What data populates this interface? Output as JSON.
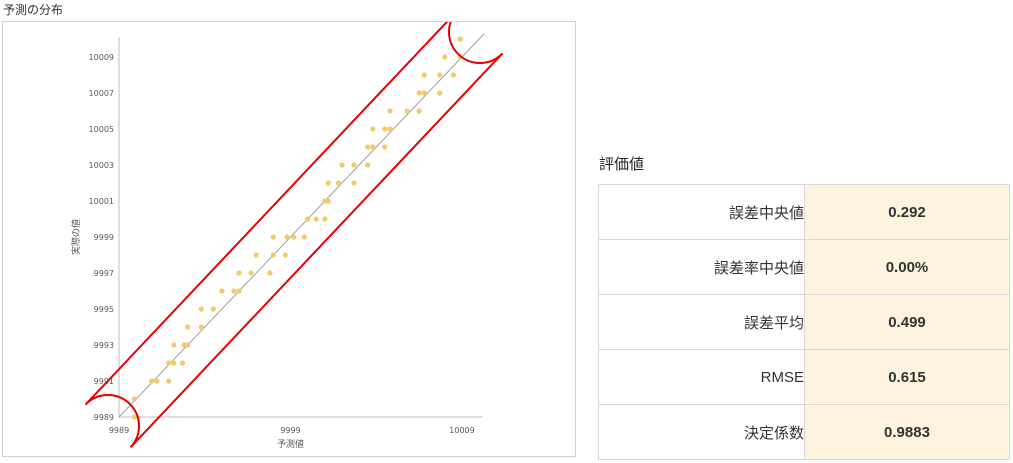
{
  "page": {
    "section_title": "予測の分布"
  },
  "metrics": {
    "title": "評価値",
    "rows": [
      {
        "label": "誤差中央値",
        "value": "0.292"
      },
      {
        "label": "誤差率中央値",
        "value": "0.00%"
      },
      {
        "label": "誤差平均",
        "value": "0.499"
      },
      {
        "label": "RMSE",
        "value": "0.615"
      },
      {
        "label": "決定係数",
        "value": "0.9883"
      }
    ]
  },
  "colors": {
    "point": "#f2c96b",
    "reference_line": "#a0a0a0",
    "highlight": "#e60000",
    "value_cell_bg": "#fdf3df"
  },
  "chart_data": {
    "type": "scatter",
    "title": "",
    "xlabel": "予測値",
    "ylabel": "実際の値",
    "xlim": [
      9989,
      10009
    ],
    "ylim": [
      9989,
      10009
    ],
    "x_ticks": [
      9989,
      9999,
      10009
    ],
    "y_ticks": [
      9989,
      9991,
      9993,
      9995,
      9997,
      9999,
      10001,
      10003,
      10005,
      10007,
      10009
    ],
    "reference_line": "y = x",
    "highlight": "red rounded outline around the point band along the diagonal",
    "grid": false,
    "legend": "none",
    "series": [
      {
        "points": [
          [
            9989.9,
            9989
          ],
          [
            9989.9,
            9990
          ],
          [
            9990.9,
            9991
          ],
          [
            9991.2,
            9991
          ],
          [
            9991.9,
            9991
          ],
          [
            9991.9,
            9992
          ],
          [
            9992.2,
            9992
          ],
          [
            9992.2,
            9993
          ],
          [
            9992.7,
            9992
          ],
          [
            9992.8,
            9993
          ],
          [
            9993.0,
            9993
          ],
          [
            9993.0,
            9994
          ],
          [
            9993.8,
            9994
          ],
          [
            9993.8,
            9995
          ],
          [
            9994.5,
            9995
          ],
          [
            9995.0,
            9996
          ],
          [
            9995.7,
            9996
          ],
          [
            9996.0,
            9996
          ],
          [
            9996.0,
            9997
          ],
          [
            9996.7,
            9997
          ],
          [
            9997.0,
            9998
          ],
          [
            9997.8,
            9997
          ],
          [
            9998.0,
            9998
          ],
          [
            9998.0,
            9999
          ],
          [
            9998.7,
            9998
          ],
          [
            9998.8,
            9999
          ],
          [
            9999.2,
            9999
          ],
          [
            9999.8,
            9999
          ],
          [
            10000.0,
            10000
          ],
          [
            10000.5,
            10000
          ],
          [
            10001.0,
            10000
          ],
          [
            10001.0,
            10001
          ],
          [
            10001.2,
            10001
          ],
          [
            10001.2,
            10002
          ],
          [
            10001.8,
            10002
          ],
          [
            10002.0,
            10003
          ],
          [
            10002.7,
            10002
          ],
          [
            10002.7,
            10003
          ],
          [
            10003.5,
            10003
          ],
          [
            10003.5,
            10004
          ],
          [
            10003.8,
            10004
          ],
          [
            10003.8,
            10005
          ],
          [
            10004.5,
            10004
          ],
          [
            10004.5,
            10005
          ],
          [
            10004.8,
            10005
          ],
          [
            10004.8,
            10006
          ],
          [
            10005.8,
            10006
          ],
          [
            10006.5,
            10006
          ],
          [
            10006.5,
            10007
          ],
          [
            10006.8,
            10007
          ],
          [
            10006.8,
            10008
          ],
          [
            10007.7,
            10007
          ],
          [
            10007.7,
            10008
          ],
          [
            10008.0,
            10009
          ],
          [
            10008.5,
            10008
          ],
          [
            10008.9,
            10009
          ],
          [
            10008.9,
            10010
          ]
        ]
      }
    ]
  }
}
